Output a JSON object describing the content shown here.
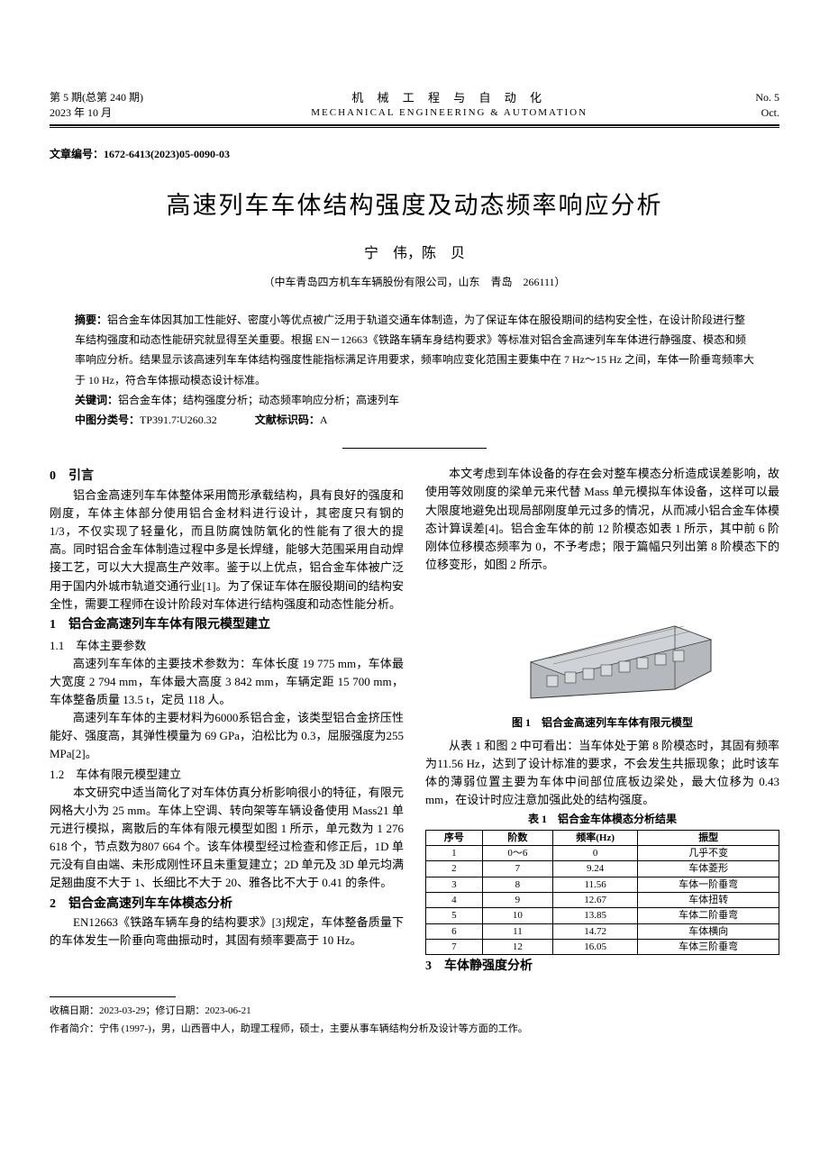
{
  "header": {
    "issue_line1": "第 5 期(总第 240 期)",
    "issue_line2": "2023 年 10 月",
    "journal_cn": "机 械 工 程 与 自 动 化",
    "journal_en": "MECHANICAL  ENGINEERING  &  AUTOMATION",
    "right_line1": "No. 5",
    "right_line2": "Oct."
  },
  "article_id_label": "文章编号：",
  "article_id": "1672-6413(2023)05-0090-03",
  "title": "高速列车车体结构强度及动态频率响应分析",
  "authors": "宁　伟，陈　贝",
  "affiliation": "（中车青岛四方机车车辆股份有限公司，山东　青岛　266111）",
  "abstract": {
    "label": "摘要：",
    "text": "铝合金车体因其加工性能好、密度小等优点被广泛用于轨道交通车体制造，为了保证车体在服役期间的结构安全性，在设计阶段进行整车结构强度和动态性能研究就显得至关重要。根据 EN－12663《铁路车辆车身结构要求》等标准对铝合金高速列车车体进行静强度、模态和频率响应分析。结果显示该高速列车车体结构强度性能指标满足许用要求，频率响应变化范围主要集中在 7 Hz～15 Hz 之间，车体一阶垂弯频率大于 10 Hz，符合车体振动模态设计标准。",
    "keywords_label": "关键词：",
    "keywords": "铝合金车体；结构强度分析；动态频率响应分析；高速列车",
    "clc_label": "中图分类号：",
    "clc": "TP391.7∶U260.32",
    "doc_code_label": "文献标识码：",
    "doc_code": "A"
  },
  "left": {
    "s0_heading": "0　引言",
    "s0_p1": "铝合金高速列车车体整体采用筒形承载结构，具有良好的强度和刚度，车体主体部分使用铝合金材料进行设计，其密度只有钢的 1/3，不仅实现了轻量化，而且防腐蚀防氧化的性能有了很大的提高。同时铝合金车体制造过程中多是长焊缝，能够大范围采用自动焊接工艺，可以大大提高生产效率。鉴于以上优点，铝合金车体被广泛用于国内外城市轨道交通行业[1]。为了保证车体在服役期间的结构安全性，需要工程师在设计阶段对车体进行结构强度和动态性能分析。",
    "s1_heading": "1　铝合金高速列车车体有限元模型建立",
    "s1_1_heading": "1.1　车体主要参数",
    "s1_1_p1": "高速列车车体的主要技术参数为：车体长度 19 775 mm，车体最大宽度 2 794 mm，车体最大高度 3 842 mm，车辆定距 15 700 mm，车体整备质量 13.5 t，定员 118 人。",
    "s1_1_p2": "高速列车车体的主要材料为6000系铝合金，该类型铝合金挤压性能好、强度高，其弹性模量为 69 GPa，泊松比为 0.3，屈服强度为255 MPa[2]。",
    "s1_2_heading": "1.2　车体有限元模型建立",
    "s1_2_p1": "本文研究中适当简化了对车体仿真分析影响很小的特征，有限元网格大小为 25 mm。车体上空调、转向架等车辆设备使用 Mass21 单元进行模拟，离散后的车体有限元模型如图 1 所示，单元数为 1 276 618 个，节点数为807 664 个。该车体模型经过检查和修正后，1D 单元没有自由端、未形成刚性环且未重复建立；2D 单元及 3D 单元均满足翘曲度不大于 1、长细比不大于 20、雅各比不大于 0.41 的条件。",
    "s2_heading": "2　铝合金高速列车车体模态分析",
    "s2_p1": "EN12663《铁路车辆车身的结构要求》[3]规定，车体整备质量下的车体发生一阶垂向弯曲振动时，其固有频率要高于 10 Hz。"
  },
  "right": {
    "p1": "本文考虑到车体设备的存在会对整车模态分析造成误差影响，故使用等效刚度的梁单元来代替 Mass 单元模拟车体设备，这样可以最大限度地避免出现局部刚度单元过多的情况，从而减小铝合金车体模态计算误差[4]。铝合金车体的前 12 阶模态如表 1 所示，其中前 6 阶刚体位移模态频率为 0，不予考虑；限于篇幅只列出第 8 阶模态下的位移变形，如图 2 所示。",
    "fig1_caption": "图 1　铝合金高速列车车体有限元模型",
    "p2": "从表 1 和图 2 中可看出：当车体处于第 8 阶模态时，其固有频率为11.56 Hz，达到了设计标准的要求，不会发生共振现象；此时该车体的薄弱位置主要为车体中间部位底板边梁处，最大位移为 0.43 mm，在设计时应注意加强此处的结构强度。",
    "table1_caption": "表 1　铝合金车体模态分析结果",
    "s3_heading": "3　车体静强度分析"
  },
  "table1": {
    "columns": [
      "序号",
      "阶数",
      "频率(Hz)",
      "振型"
    ],
    "rows": [
      [
        "1",
        "0～6",
        "0",
        "几乎不变"
      ],
      [
        "2",
        "7",
        "9.24",
        "车体菱形"
      ],
      [
        "3",
        "8",
        "11.56",
        "车体一阶垂弯"
      ],
      [
        "4",
        "9",
        "12.67",
        "车体扭转"
      ],
      [
        "5",
        "10",
        "13.85",
        "车体二阶垂弯"
      ],
      [
        "6",
        "11",
        "14.72",
        "车体横向"
      ],
      [
        "7",
        "12",
        "16.05",
        "车体三阶垂弯"
      ]
    ],
    "col_widths": [
      "16%",
      "20%",
      "24%",
      "40%"
    ]
  },
  "figure1": {
    "body_fill": "#b5b8bc",
    "body_stroke": "#3a3a3a",
    "window_fill": "#d8dadd",
    "background": "#ffffff"
  },
  "footnotes": {
    "received": "收稿日期：2023-03-29；修订日期：2023-06-21",
    "bio": "作者简介：宁伟 (1997-)，男，山西晋中人，助理工程师，硕士，主要从事车辆结构分析及设计等方面的工作。"
  }
}
